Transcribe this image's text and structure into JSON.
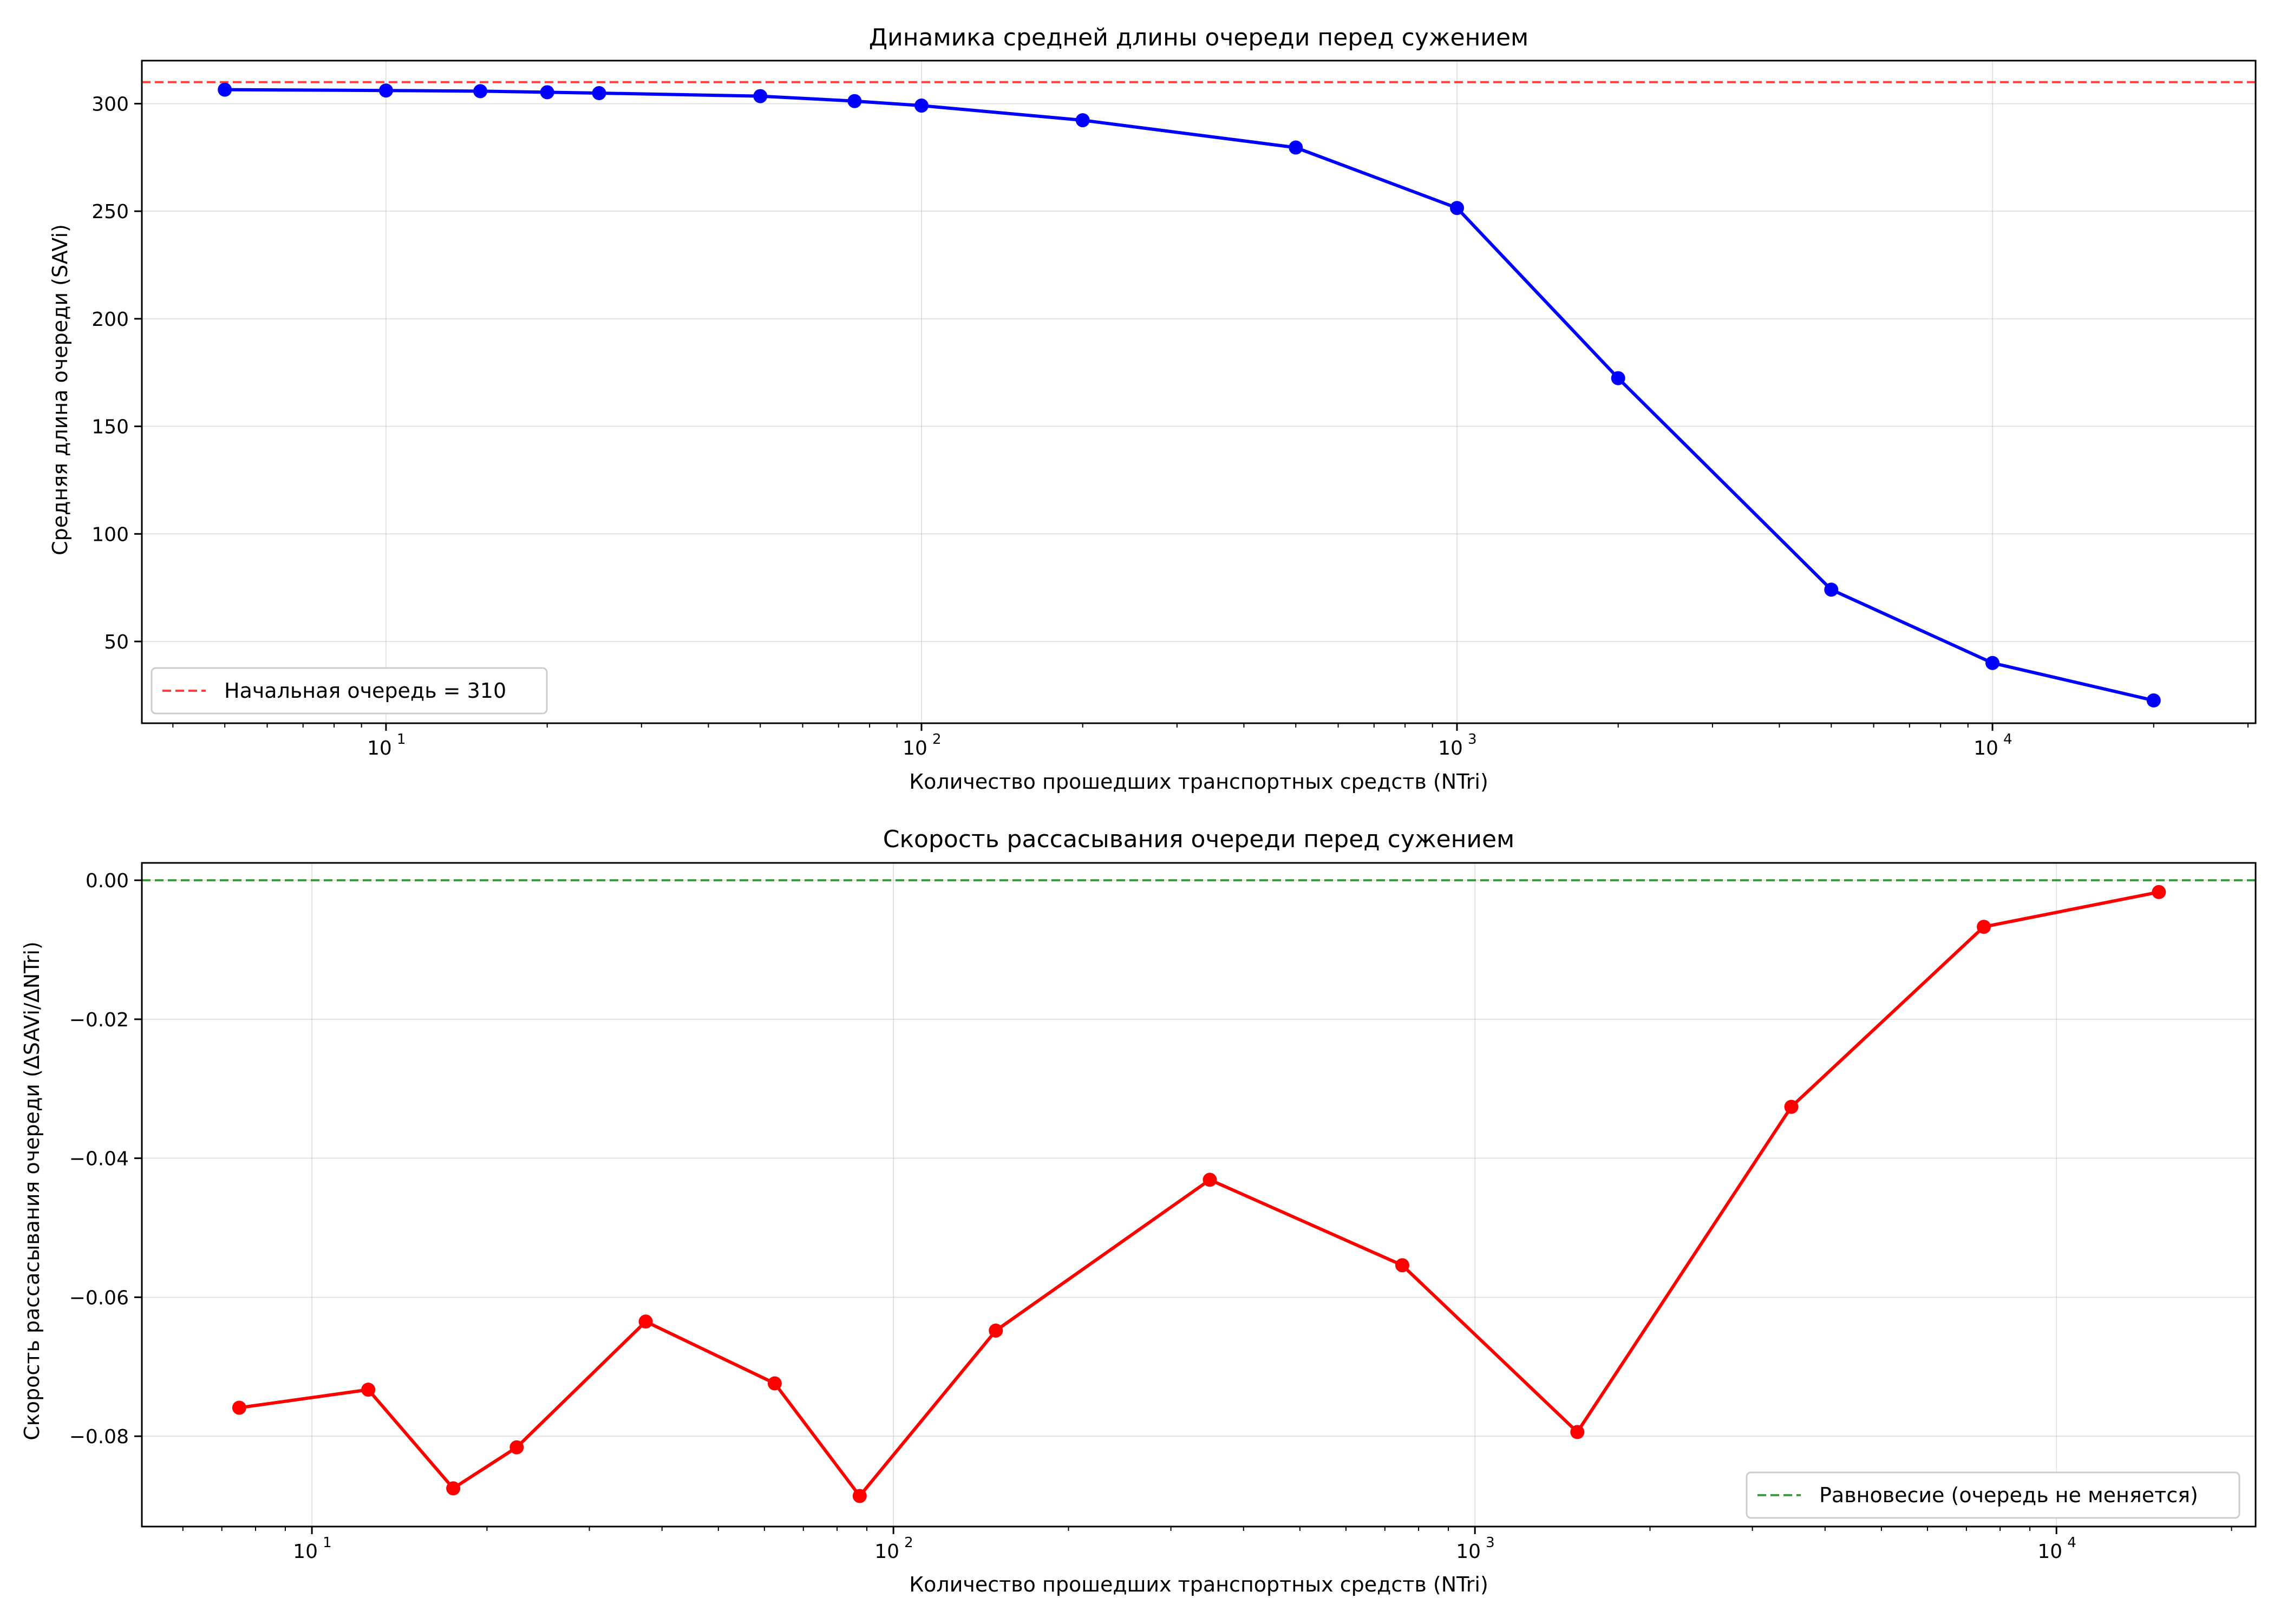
{
  "chart_data": [
    {
      "type": "line",
      "title": "Динамика средней длины очереди перед сужением",
      "xlabel": "Количество прошедших транспортных средств (NTri)",
      "ylabel": "Средняя длина очереди (SAVi)",
      "xscale": "log",
      "xlim": [
        3.5,
        31000
      ],
      "ylim": [
        12,
        320
      ],
      "yticks": [
        50,
        100,
        150,
        200,
        250,
        300
      ],
      "xticks": [
        10,
        100,
        1000,
        10000
      ],
      "xtick_labels": [
        {
          "base": "10",
          "exp": "1"
        },
        {
          "base": "10",
          "exp": "2"
        },
        {
          "base": "10",
          "exp": "3"
        },
        {
          "base": "10",
          "exp": "4"
        }
      ],
      "grid": true,
      "series": [
        {
          "color": "#0000ff",
          "marker": "circle",
          "x": [
            5,
            10,
            15,
            20,
            25,
            50,
            75,
            100,
            200,
            500,
            1000,
            2000,
            5000,
            10000,
            20000
          ],
          "y": [
            306.5,
            306.1,
            305.8,
            305.3,
            304.9,
            303.5,
            301.2,
            299.1,
            292.3,
            279.6,
            251.5,
            172.4,
            74.1,
            40.0,
            22.6
          ]
        }
      ],
      "reference_line": {
        "y": 310,
        "color": "#ff0000",
        "style": "dashed"
      },
      "legend": {
        "placement": "lower-left",
        "entries": [
          {
            "label": "Начальная очередь = 310",
            "color": "#ff0000",
            "style": "dashed"
          }
        ]
      }
    },
    {
      "type": "line",
      "title": "Скорость рассасывания очереди перед сужением",
      "xlabel": "Количество прошедших транспортных средств (NTri)",
      "ylabel": "Скорость рассасывания очереди (ΔSAVi/ΔNTri)",
      "xscale": "log",
      "xlim": [
        5.1,
        22000
      ],
      "ylim": [
        -0.093,
        0.0025
      ],
      "yticks": [
        -0.08,
        -0.06,
        -0.04,
        -0.02,
        0.0
      ],
      "ytick_labels": [
        "−0.08",
        "−0.06",
        "−0.04",
        "−0.02",
        "0.00"
      ],
      "xticks": [
        10,
        100,
        1000,
        10000
      ],
      "xtick_labels": [
        {
          "base": "10",
          "exp": "1"
        },
        {
          "base": "10",
          "exp": "2"
        },
        {
          "base": "10",
          "exp": "3"
        },
        {
          "base": "10",
          "exp": "4"
        }
      ],
      "grid": true,
      "series": [
        {
          "color": "#ff0000",
          "marker": "circle",
          "x": [
            7.5,
            12.5,
            17.5,
            22.5,
            37.5,
            62.5,
            87.5,
            150,
            350,
            750,
            1500,
            3500,
            7500,
            15000
          ],
          "y": [
            -0.0759,
            -0.0733,
            -0.0875,
            -0.0816,
            -0.0635,
            -0.0724,
            -0.0886,
            -0.0648,
            -0.0431,
            -0.0554,
            -0.0794,
            -0.0326,
            -0.0067,
            -0.0017
          ]
        }
      ],
      "reference_line": {
        "y": 0.0,
        "color": "#008000",
        "style": "dashed"
      },
      "legend": {
        "placement": "lower-right",
        "entries": [
          {
            "label": "Равновесие (очередь не меняется)",
            "color": "#008000",
            "style": "dashed"
          }
        ]
      }
    }
  ]
}
